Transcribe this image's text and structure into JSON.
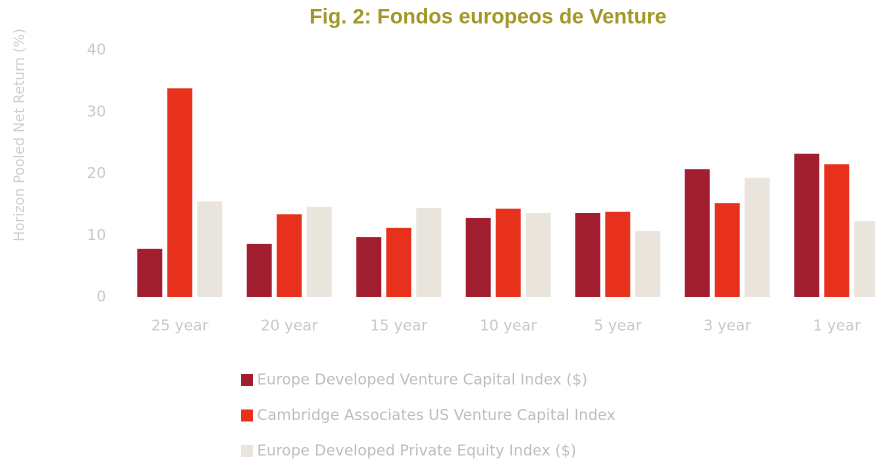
{
  "chart_data": {
    "type": "bar",
    "title": "Fig. 2: Fondos europeos de Venture",
    "y_label": "Horizon Pooled Net Return (%)",
    "categories": [
      "25 year",
      "20 year",
      "15 year",
      "10 year",
      "5 year",
      "3 year",
      "1 year"
    ],
    "series": [
      {
        "name": "Europe Developed Venture Capital Index ($)",
        "color": "#a11d30",
        "values": [
          7.8,
          8.6,
          9.7,
          12.8,
          13.6,
          20.7,
          23.2
        ]
      },
      {
        "name": "Cambridge Associates US Venture Capital Index",
        "color": "#e8311d",
        "values": [
          33.8,
          13.4,
          11.2,
          14.3,
          13.8,
          15.2,
          21.5
        ]
      },
      {
        "name": "Europe Developed Private Equity Index ($)",
        "color": "#e9e4dc",
        "values": [
          15.5,
          14.6,
          14.4,
          13.6,
          10.7,
          19.3,
          12.3
        ]
      }
    ],
    "ylim": [
      0,
      40
    ],
    "yticks": [
      0,
      10,
      20,
      30,
      40
    ],
    "grid": false,
    "legend": "bottom"
  }
}
